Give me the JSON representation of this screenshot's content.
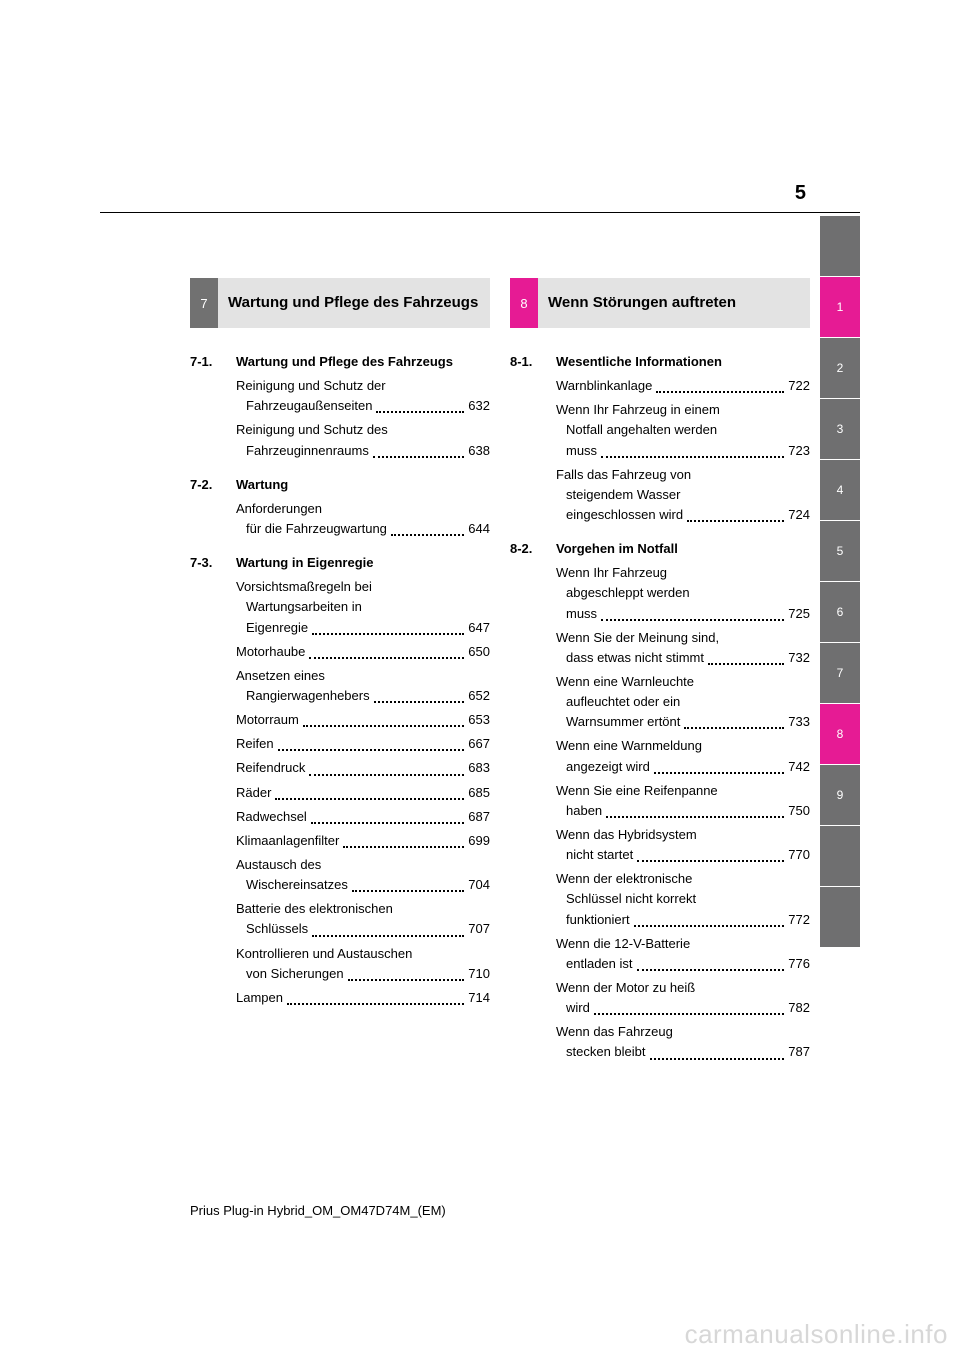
{
  "page_number": "5",
  "footer": "Prius Plug-in Hybrid_OM_OM47D74M_(EM)",
  "watermark": "carmanualsonline.info",
  "side_tabs": [
    "",
    "1",
    "2",
    "3",
    "4",
    "5",
    "6",
    "7",
    "8",
    "9",
    "",
    ""
  ],
  "side_tabs_pink_indices": [
    1,
    8
  ],
  "left": {
    "tab_number": "7",
    "tab_color": "#717171",
    "title": "Wartung und Pflege des Fahrzeugs",
    "sections": [
      {
        "num": "7-1.",
        "title": "Wartung und Pflege des Fahrzeugs",
        "entries": [
          {
            "text": "Reinigung und Schutz der",
            "cont": "Fahrzeugaußenseiten",
            "page": "632"
          },
          {
            "text": "Reinigung und Schutz des",
            "cont": "Fahrzeuginnenraums",
            "page": "638"
          }
        ]
      },
      {
        "num": "7-2.",
        "title": "Wartung",
        "entries": [
          {
            "text": "Anforderungen",
            "cont": "für die Fahrzeugwartung",
            "page": "644"
          }
        ]
      },
      {
        "num": "7-3.",
        "title": "Wartung in Eigenregie",
        "entries": [
          {
            "text": "Vorsichtsmaßregeln bei",
            "cont": "Wartungsarbeiten in",
            "cont2": "Eigenregie",
            "page": "647"
          },
          {
            "text": "Motorhaube",
            "page": "650"
          },
          {
            "text": "Ansetzen eines",
            "cont": "Rangierwagenhebers",
            "page": "652"
          },
          {
            "text": "Motorraum",
            "page": "653"
          },
          {
            "text": "Reifen",
            "page": "667"
          },
          {
            "text": "Reifendruck",
            "page": "683"
          },
          {
            "text": "Räder",
            "page": "685"
          },
          {
            "text": "Radwechsel",
            "page": "687"
          },
          {
            "text": "Klimaanlagenfilter",
            "page": "699"
          },
          {
            "text": "Austausch des",
            "cont": "Wischereinsatzes",
            "page": "704"
          },
          {
            "text": "Batterie des elektronischen",
            "cont": "Schlüssels",
            "page": "707"
          },
          {
            "text": "Kontrollieren und Austauschen",
            "cont": "von Sicherungen",
            "page": "710"
          },
          {
            "text": "Lampen",
            "page": "714"
          }
        ]
      }
    ]
  },
  "right": {
    "tab_number": "8",
    "tab_color": "#e61b94",
    "title": "Wenn Störungen auftreten",
    "sections": [
      {
        "num": "8-1.",
        "title": "Wesentliche Informationen",
        "entries": [
          {
            "text": "Warnblinkanlage",
            "page": "722"
          },
          {
            "text": "Wenn Ihr Fahrzeug in einem",
            "cont": "Notfall angehalten werden",
            "cont2": "muss",
            "page": "723"
          },
          {
            "text": "Falls das Fahrzeug von",
            "cont": "steigendem Wasser",
            "cont2": "eingeschlossen wird",
            "page": "724"
          }
        ]
      },
      {
        "num": "8-2.",
        "title": "Vorgehen im Notfall",
        "entries": [
          {
            "text": "Wenn Ihr Fahrzeug",
            "cont": "abgeschleppt werden",
            "cont2": "muss",
            "page": "725"
          },
          {
            "text": "Wenn Sie der Meinung sind,",
            "cont": "dass etwas nicht stimmt",
            "page": "732"
          },
          {
            "text": "Wenn eine Warnleuchte",
            "cont": "aufleuchtet oder ein",
            "cont2": "Warnsummer ertönt",
            "page": "733"
          },
          {
            "text": "Wenn eine Warnmeldung",
            "cont": "angezeigt wird",
            "page": "742"
          },
          {
            "text": "Wenn Sie eine Reifenpanne",
            "cont": "haben",
            "page": "750"
          },
          {
            "text": "Wenn das Hybridsystem",
            "cont": "nicht startet",
            "page": "770"
          },
          {
            "text": "Wenn der elektronische",
            "cont": "Schlüssel nicht korrekt",
            "cont2": "funktioniert",
            "page": "772"
          },
          {
            "text": "Wenn die 12-V-Batterie",
            "cont": "entladen ist",
            "page": "776"
          },
          {
            "text": "Wenn der Motor zu heiß",
            "cont": "wird",
            "page": "782"
          },
          {
            "text": "Wenn das Fahrzeug",
            "cont": "stecken bleibt",
            "page": "787"
          }
        ]
      }
    ]
  }
}
